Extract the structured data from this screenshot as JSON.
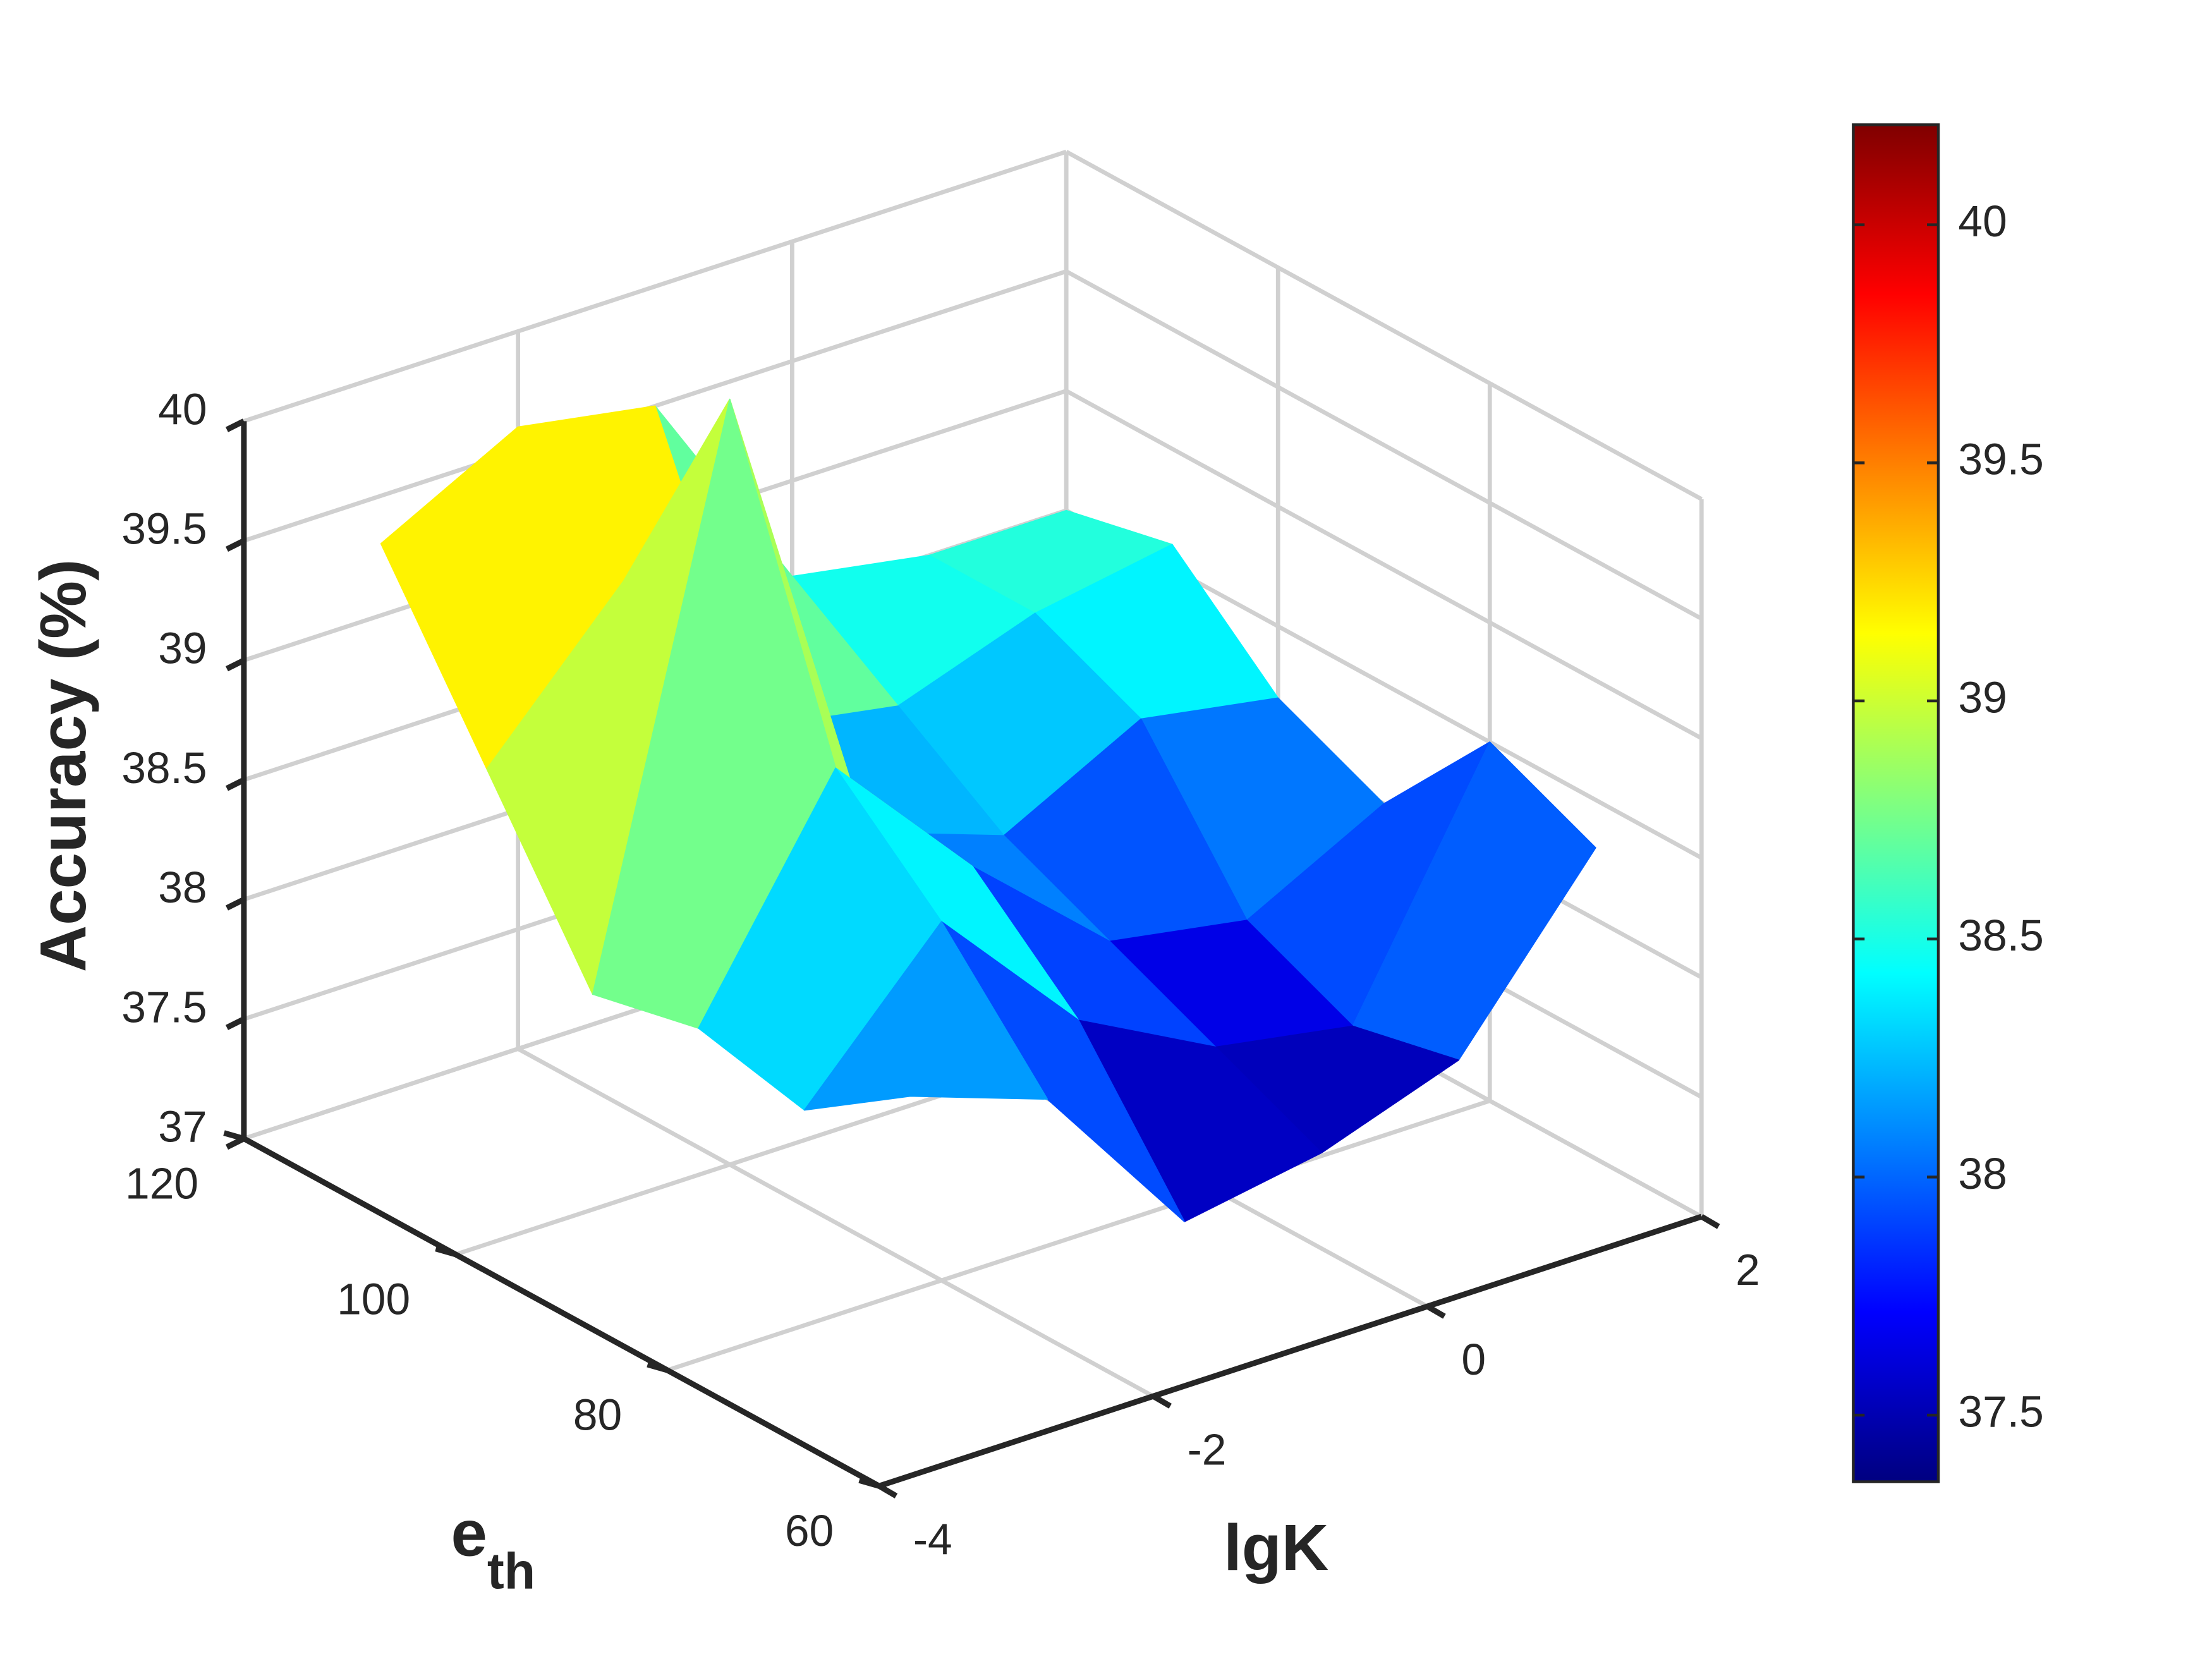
{
  "chart_data": {
    "type": "surface",
    "xlabel": "lgK",
    "ylabel": {
      "base": "e",
      "sub": "th"
    },
    "zlabel": "Accuracy (%)",
    "x": [
      -3,
      -2,
      -1,
      0,
      1,
      2
    ],
    "y": [
      70,
      80,
      90,
      100,
      110,
      120
    ],
    "z": [
      [
        38.2,
        38.0,
        37.3,
        37.4,
        37.6,
        38.3
      ],
      [
        37.9,
        38.5,
        37.9,
        37.6,
        37.5,
        38.5
      ],
      [
        38.0,
        38.9,
        38.3,
        37.8,
        37.7,
        38.0
      ],
      [
        37.9,
        40.2,
        38.2,
        38.0,
        38.3,
        38.2
      ],
      [
        38.6,
        39.2,
        38.4,
        38.3,
        38.5,
        38.6
      ],
      [
        39.3,
        39.6,
        39.5,
        38.6,
        38.5,
        38.5
      ]
    ],
    "xlim": [
      -4,
      2
    ],
    "xticks": [
      -4,
      -2,
      0,
      2
    ],
    "ylim": [
      60,
      120
    ],
    "yticks": [
      60,
      80,
      100,
      120
    ],
    "zlim": [
      37,
      40
    ],
    "zticks": [
      37,
      37.5,
      38,
      38.5,
      39,
      39.5,
      40
    ],
    "colormap": "jet",
    "clim": [
      37.36,
      40.21
    ],
    "cticks": [
      37.5,
      38,
      38.5,
      39,
      39.5,
      40
    ],
    "grid": true
  }
}
